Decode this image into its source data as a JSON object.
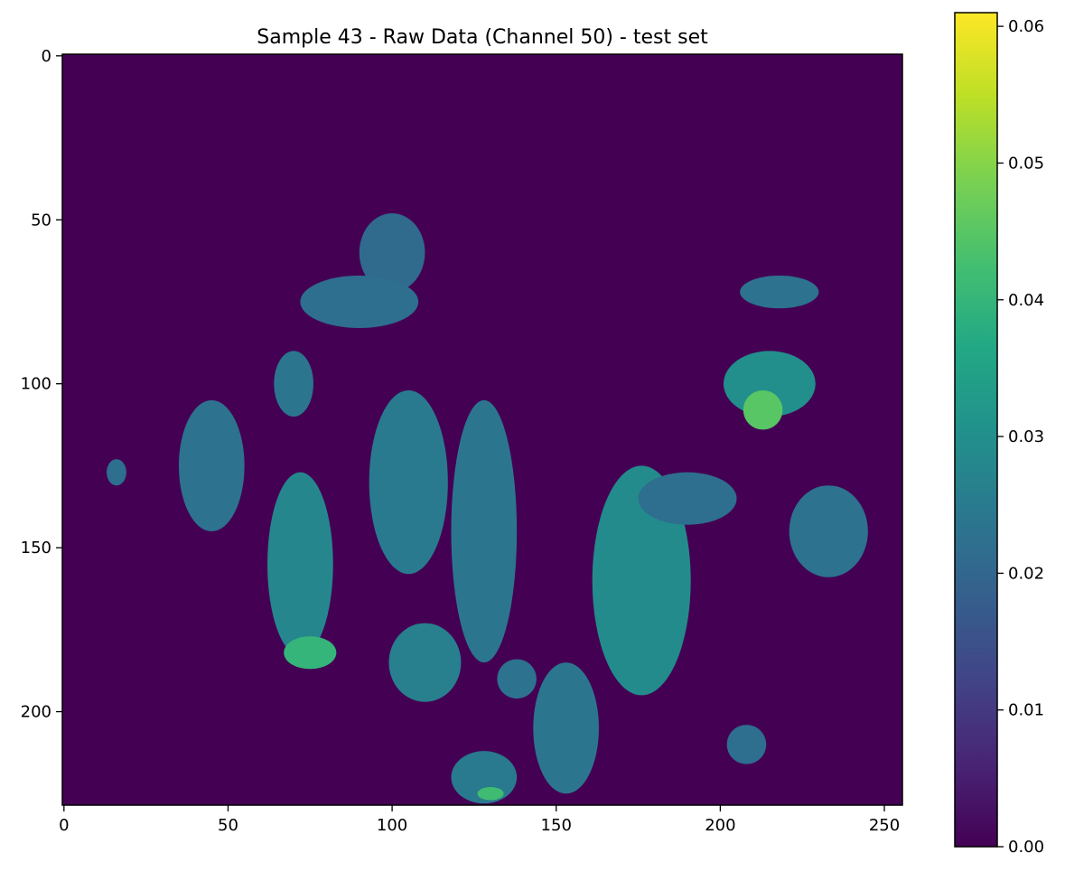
{
  "chart_data": {
    "type": "heatmap",
    "title": "Sample 43 - Raw Data (Channel 50) - test set",
    "xlabel": "",
    "ylabel": "",
    "image_shape": [
      229,
      256
    ],
    "xlim": [
      -0.5,
      255.5
    ],
    "ylim": [
      228.5,
      -0.5
    ],
    "x_ticks": [
      0,
      50,
      100,
      150,
      200,
      250
    ],
    "y_ticks": [
      0,
      50,
      100,
      150,
      200
    ],
    "x_tick_labels": [
      "0",
      "50",
      "100",
      "150",
      "200",
      "250"
    ],
    "y_tick_labels": [
      "0",
      "50",
      "100",
      "150",
      "200"
    ],
    "colormap": "viridis",
    "colorbar": {
      "vmin": 0.0,
      "vmax": 0.061,
      "ticks": [
        0.0,
        0.01,
        0.02,
        0.03,
        0.04,
        0.05,
        0.06
      ],
      "tick_labels": [
        "0.00",
        "0.01",
        "0.02",
        "0.03",
        "0.04",
        "0.05",
        "0.06"
      ]
    },
    "background_value": 0.0,
    "grid": false,
    "regions": [
      {
        "cx": 100,
        "cy": 60,
        "rx": 10,
        "ry": 12,
        "value": 0.021
      },
      {
        "cx": 90,
        "cy": 75,
        "rx": 18,
        "ry": 8,
        "value": 0.022
      },
      {
        "cx": 70,
        "cy": 100,
        "rx": 6,
        "ry": 10,
        "value": 0.024
      },
      {
        "cx": 45,
        "cy": 125,
        "rx": 10,
        "ry": 20,
        "value": 0.023
      },
      {
        "cx": 16,
        "cy": 127,
        "rx": 3,
        "ry": 4,
        "value": 0.022
      },
      {
        "cx": 72,
        "cy": 155,
        "rx": 10,
        "ry": 28,
        "value": 0.028
      },
      {
        "cx": 75,
        "cy": 182,
        "rx": 8,
        "ry": 5,
        "value": 0.04
      },
      {
        "cx": 105,
        "cy": 130,
        "rx": 12,
        "ry": 28,
        "value": 0.025
      },
      {
        "cx": 110,
        "cy": 185,
        "rx": 11,
        "ry": 12,
        "value": 0.026
      },
      {
        "cx": 128,
        "cy": 145,
        "rx": 10,
        "ry": 40,
        "value": 0.024
      },
      {
        "cx": 138,
        "cy": 190,
        "rx": 6,
        "ry": 6,
        "value": 0.023
      },
      {
        "cx": 153,
        "cy": 205,
        "rx": 10,
        "ry": 20,
        "value": 0.024
      },
      {
        "cx": 128,
        "cy": 220,
        "rx": 10,
        "ry": 8,
        "value": 0.025
      },
      {
        "cx": 130,
        "cy": 225,
        "rx": 4,
        "ry": 2,
        "value": 0.042
      },
      {
        "cx": 176,
        "cy": 160,
        "rx": 15,
        "ry": 35,
        "value": 0.029
      },
      {
        "cx": 190,
        "cy": 135,
        "rx": 15,
        "ry": 8,
        "value": 0.022
      },
      {
        "cx": 215,
        "cy": 100,
        "rx": 14,
        "ry": 10,
        "value": 0.03
      },
      {
        "cx": 213,
        "cy": 108,
        "rx": 6,
        "ry": 6,
        "value": 0.045
      },
      {
        "cx": 218,
        "cy": 72,
        "rx": 12,
        "ry": 5,
        "value": 0.023
      },
      {
        "cx": 233,
        "cy": 145,
        "rx": 12,
        "ry": 14,
        "value": 0.023
      },
      {
        "cx": 208,
        "cy": 210,
        "rx": 6,
        "ry": 6,
        "value": 0.022
      }
    ]
  }
}
